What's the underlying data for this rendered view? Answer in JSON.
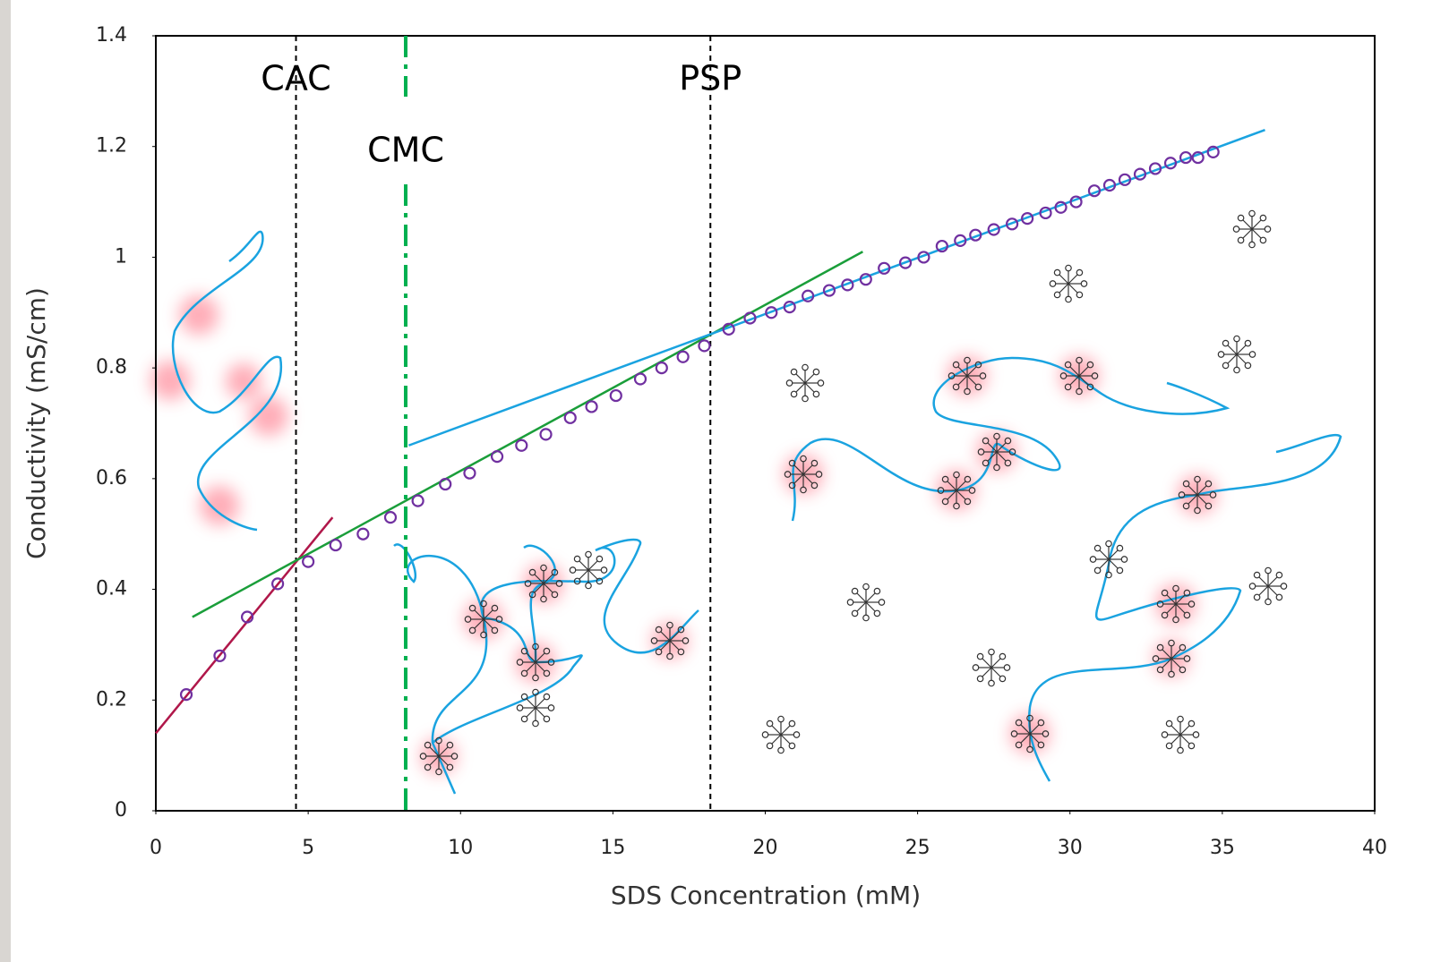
{
  "chart_data": {
    "type": "scatter",
    "x_label": "SDS Concentration (mM)",
    "y_label": "Conductivity (mS/cm)",
    "xlim": [
      0,
      40
    ],
    "ylim": [
      0,
      1.4
    ],
    "xticks": [
      0,
      5,
      10,
      15,
      20,
      25,
      30,
      35,
      40
    ],
    "yticks": [
      0,
      0.2,
      0.4,
      0.6,
      0.8,
      1,
      1.2,
      1.4
    ],
    "marker_color": "#7030a0",
    "x": [
      1.0,
      2.1,
      3.0,
      4.0,
      5.0,
      5.9,
      6.8,
      7.7,
      8.6,
      9.5,
      10.3,
      11.2,
      12.0,
      12.8,
      13.6,
      14.3,
      15.1,
      15.9,
      16.6,
      17.3,
      18.0,
      18.8,
      19.5,
      20.2,
      20.8,
      21.4,
      22.1,
      22.7,
      23.3,
      23.9,
      24.6,
      25.2,
      25.8,
      26.4,
      26.9,
      27.5,
      28.1,
      28.6,
      29.2,
      29.7,
      30.2,
      30.8,
      31.3,
      31.8,
      32.3,
      32.8,
      33.3,
      33.8,
      34.2,
      34.7
    ],
    "values": [
      0.21,
      0.28,
      0.35,
      0.41,
      0.45,
      0.48,
      0.5,
      0.53,
      0.56,
      0.59,
      0.61,
      0.64,
      0.66,
      0.68,
      0.71,
      0.73,
      0.75,
      0.78,
      0.8,
      0.82,
      0.84,
      0.87,
      0.89,
      0.9,
      0.91,
      0.93,
      0.94,
      0.95,
      0.96,
      0.98,
      0.99,
      1.0,
      1.02,
      1.03,
      1.04,
      1.05,
      1.06,
      1.07,
      1.08,
      1.09,
      1.1,
      1.12,
      1.13,
      1.14,
      1.15,
      1.16,
      1.17,
      1.18,
      1.18,
      1.19
    ],
    "fit_lines": [
      {
        "color": "#b0174a",
        "x": [
          0,
          5.8
        ],
        "y": [
          0.14,
          0.53
        ]
      },
      {
        "color": "#1a9e3a",
        "x": [
          1.2,
          23.2
        ],
        "y": [
          0.35,
          1.01
        ]
      },
      {
        "color": "#1aa3e0",
        "x": [
          8.3,
          36.4
        ],
        "y": [
          0.66,
          1.23
        ]
      }
    ],
    "reference_lines": [
      {
        "label": "CAC",
        "x": 4.6,
        "color": "#000000",
        "style": "dashed"
      },
      {
        "label": "CMC",
        "x": 8.2,
        "color": "#00b050",
        "style": "dash-dot"
      },
      {
        "label": "PSP",
        "x": 18.2,
        "color": "#000000",
        "style": "dashed"
      }
    ]
  }
}
